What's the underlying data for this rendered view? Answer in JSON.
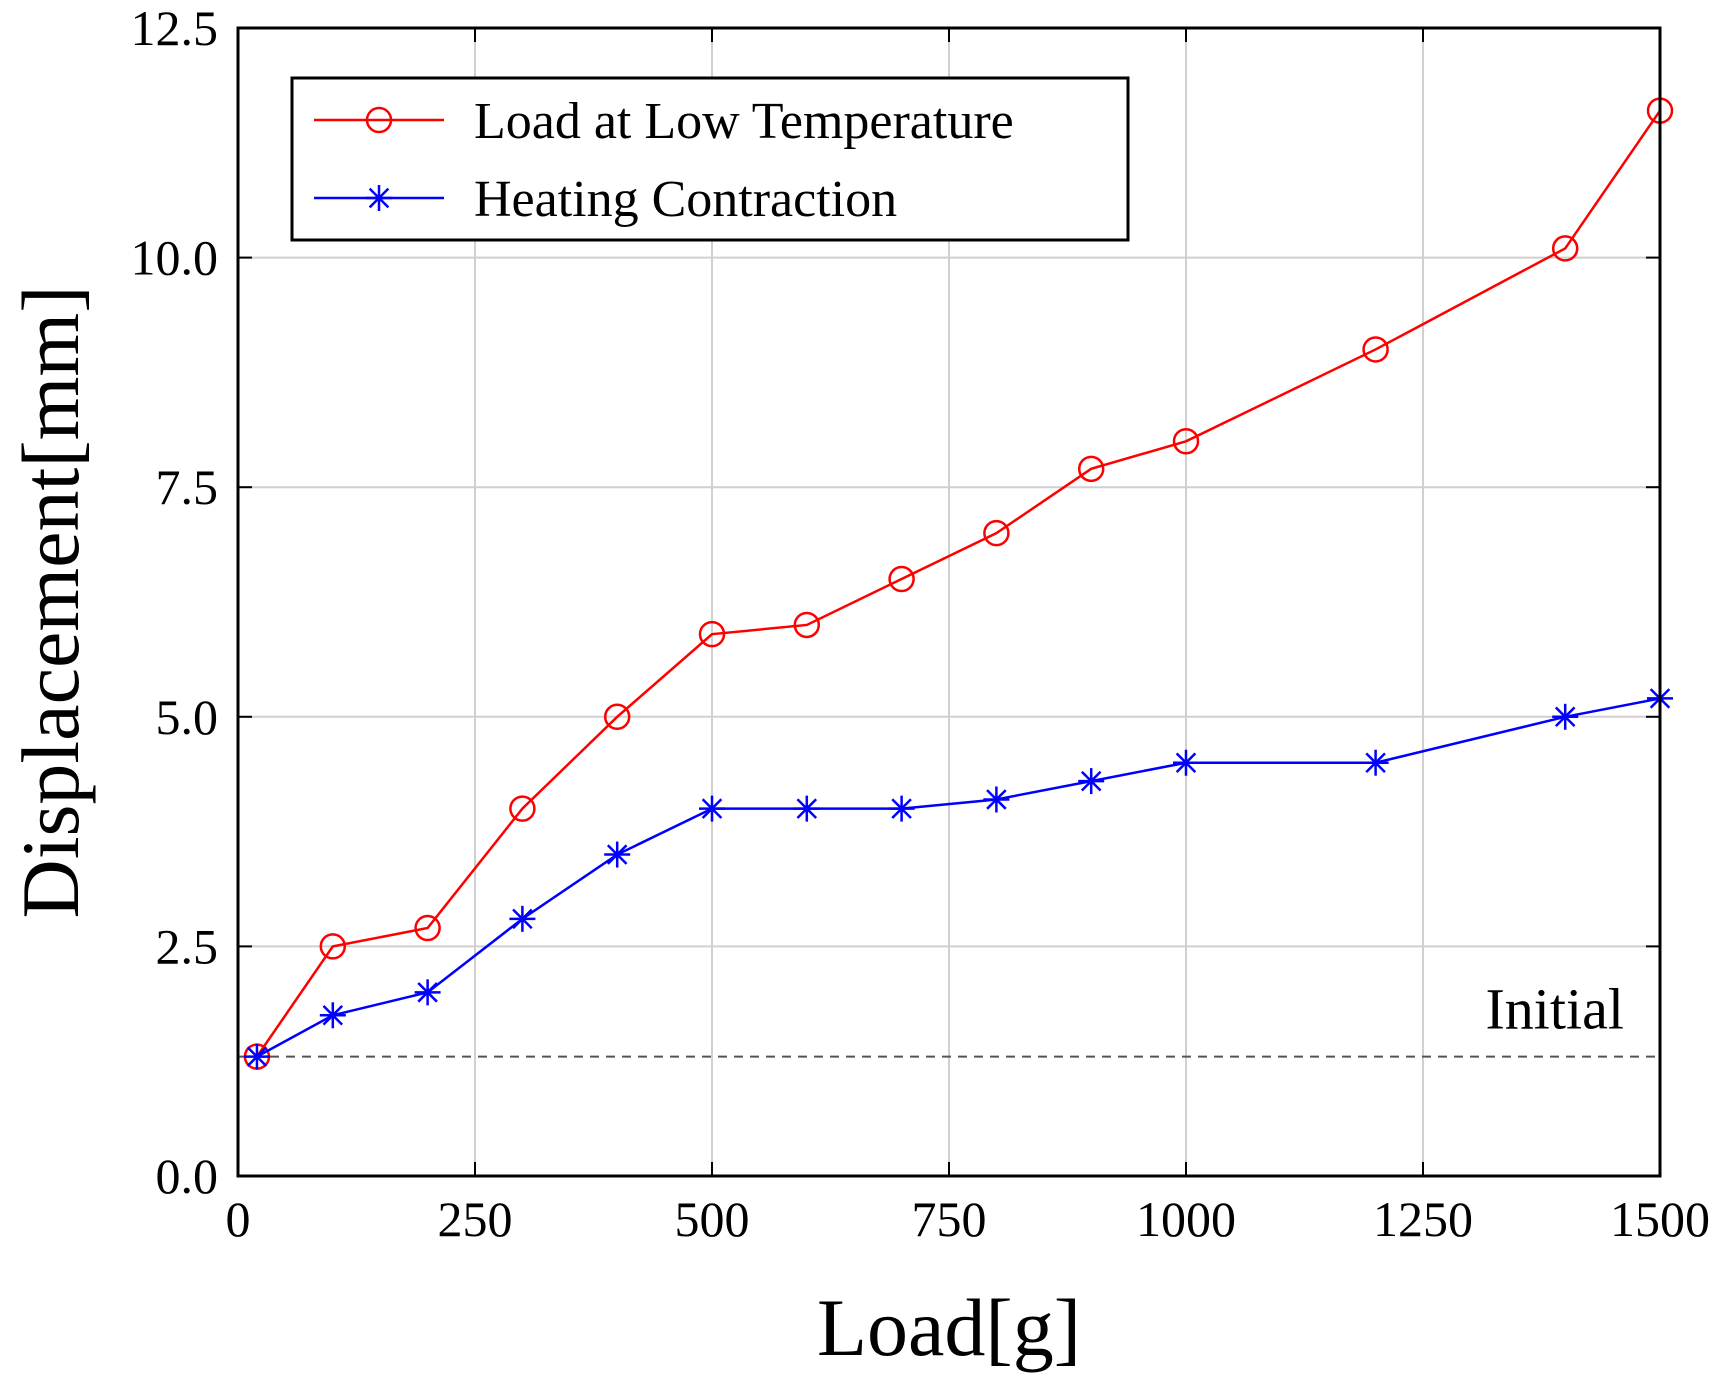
{
  "chart_data": {
    "type": "line",
    "title": "",
    "xlabel": "Load[g]",
    "ylabel": "Displacement[mm]",
    "xlim": [
      0,
      1500
    ],
    "ylim": [
      0,
      12.5
    ],
    "xticks": [
      0,
      250,
      500,
      750,
      1000,
      1250,
      1500
    ],
    "yticks": [
      0,
      2.5,
      5,
      7.5,
      10,
      12.5
    ],
    "xtick_labels": [
      "0",
      "250",
      "500",
      "750",
      "1000",
      "1250",
      "1500"
    ],
    "ytick_labels": [
      "0.0",
      "2.5",
      "5.0",
      "7.5",
      "10.0",
      "12.5"
    ],
    "grid": true,
    "legend_position": "top-left",
    "series": [
      {
        "name": "Load at Low Temperature",
        "color": "#ff0000",
        "marker": "circle",
        "x": [
          20,
          100,
          200,
          300,
          400,
          500,
          600,
          700,
          800,
          900,
          1000,
          1200,
          1400,
          1500
        ],
        "y": [
          1.3,
          2.5,
          2.7,
          4.0,
          5.0,
          5.9,
          6.0,
          6.5,
          7.0,
          7.7,
          8.0,
          9.0,
          10.1,
          11.6
        ]
      },
      {
        "name": "Heating Contraction",
        "color": "#0000ff",
        "marker": "asterisk",
        "x": [
          20,
          100,
          200,
          300,
          400,
          500,
          600,
          700,
          800,
          900,
          1000,
          1200,
          1400,
          1500
        ],
        "y": [
          1.3,
          1.75,
          2.0,
          2.8,
          3.5,
          4.0,
          4.0,
          4.0,
          4.1,
          4.3,
          4.5,
          4.5,
          5.0,
          5.2
        ]
      }
    ],
    "reference_line": {
      "label": "Initial",
      "y": 1.3,
      "style": "dashed",
      "color": "#555555"
    }
  }
}
